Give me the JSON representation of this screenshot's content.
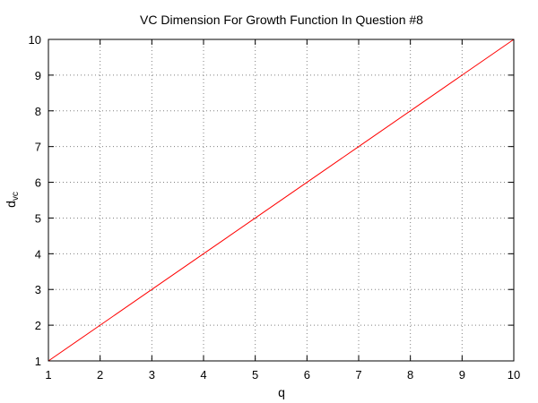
{
  "chart_data": {
    "type": "line",
    "title": "VC Dimension For Growth Function In Question #8",
    "xlabel": "q",
    "ylabel_main": "d",
    "ylabel_sub": "vc",
    "xlim": [
      1,
      10
    ],
    "ylim": [
      1,
      10
    ],
    "x_ticks": [
      1,
      2,
      3,
      4,
      5,
      6,
      7,
      8,
      9,
      10
    ],
    "y_ticks": [
      1,
      2,
      3,
      4,
      5,
      6,
      7,
      8,
      9,
      10
    ],
    "grid": true,
    "legend": "none",
    "series": [
      {
        "color": "#ff0000",
        "x": [
          1,
          2,
          3,
          4,
          5,
          6,
          7,
          8,
          9,
          10
        ],
        "y": [
          1,
          2,
          3,
          4,
          5,
          6,
          7,
          8,
          9,
          10
        ]
      }
    ]
  }
}
